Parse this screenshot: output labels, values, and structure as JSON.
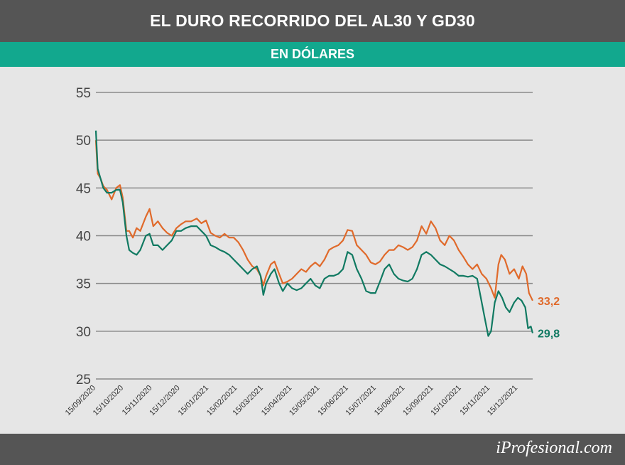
{
  "header": {
    "title": "EL DURO RECORRIDO DEL AL30 Y GD30"
  },
  "subheader": {
    "title": "EN DÓLARES"
  },
  "footer": {
    "brand_prefix": "i",
    "brand_rest": "Profesional.com"
  },
  "colors": {
    "al30": "#e06a2b",
    "gd30": "#117a62",
    "header_bg": "#555555",
    "band": "#12a88e",
    "grid": "#8a8a8a"
  },
  "chart_data": {
    "type": "line",
    "ylim": [
      25,
      55
    ],
    "yticks": [
      55,
      50,
      45,
      40,
      35,
      30,
      25
    ],
    "x_range": [
      "2020-09-15",
      "2021-12-31"
    ],
    "xticks": [
      "15/09/2020",
      "15/10/2020",
      "15/11/2020",
      "15/12/2020",
      "15/01/2021",
      "15/02/2021",
      "15/03/2021",
      "15/04/2021",
      "15/05/2021",
      "15/06/2021",
      "15/07/2021",
      "15/08/2021",
      "15/09/2021",
      "15/10/2021",
      "15/11/2021",
      "15/12/2021"
    ],
    "series": [
      {
        "key": "al30",
        "end_label": "33,2",
        "points": [
          [
            "2020-09-15",
            50.0
          ],
          [
            "2020-09-17",
            46.5
          ],
          [
            "2020-09-20",
            46.0
          ],
          [
            "2020-09-23",
            45.2
          ],
          [
            "2020-09-27",
            44.8
          ],
          [
            "2020-10-02",
            43.8
          ],
          [
            "2020-10-07",
            45.0
          ],
          [
            "2020-10-11",
            45.3
          ],
          [
            "2020-10-14",
            44.0
          ],
          [
            "2020-10-18",
            40.5
          ],
          [
            "2020-10-21",
            40.5
          ],
          [
            "2020-10-25",
            39.8
          ],
          [
            "2020-10-29",
            40.8
          ],
          [
            "2020-11-02",
            40.5
          ],
          [
            "2020-11-08",
            42.0
          ],
          [
            "2020-11-12",
            42.8
          ],
          [
            "2020-11-16",
            41.0
          ],
          [
            "2020-11-21",
            41.5
          ],
          [
            "2020-11-26",
            40.8
          ],
          [
            "2020-12-01",
            40.3
          ],
          [
            "2020-12-06",
            40.0
          ],
          [
            "2020-12-11",
            40.8
          ],
          [
            "2020-12-16",
            41.2
          ],
          [
            "2020-12-21",
            41.5
          ],
          [
            "2020-12-27",
            41.5
          ],
          [
            "2021-01-02",
            41.8
          ],
          [
            "2021-01-07",
            41.3
          ],
          [
            "2021-01-12",
            41.6
          ],
          [
            "2021-01-17",
            40.3
          ],
          [
            "2021-01-22",
            40.0
          ],
          [
            "2021-01-27",
            39.8
          ],
          [
            "2021-02-01",
            40.2
          ],
          [
            "2021-02-06",
            39.8
          ],
          [
            "2021-02-11",
            39.8
          ],
          [
            "2021-02-16",
            39.3
          ],
          [
            "2021-02-21",
            38.5
          ],
          [
            "2021-02-26",
            37.5
          ],
          [
            "2021-03-03",
            36.8
          ],
          [
            "2021-03-08",
            36.5
          ],
          [
            "2021-03-12",
            35.8
          ],
          [
            "2021-03-15",
            34.8
          ],
          [
            "2021-03-18",
            35.8
          ],
          [
            "2021-03-23",
            37.0
          ],
          [
            "2021-03-27",
            37.3
          ],
          [
            "2021-04-01",
            36.0
          ],
          [
            "2021-04-05",
            35.0
          ],
          [
            "2021-04-10",
            35.2
          ],
          [
            "2021-04-15",
            35.5
          ],
          [
            "2021-04-20",
            36.0
          ],
          [
            "2021-04-25",
            36.5
          ],
          [
            "2021-04-30",
            36.2
          ],
          [
            "2021-05-05",
            36.8
          ],
          [
            "2021-05-10",
            37.2
          ],
          [
            "2021-05-15",
            36.8
          ],
          [
            "2021-05-20",
            37.5
          ],
          [
            "2021-05-25",
            38.5
          ],
          [
            "2021-05-30",
            38.8
          ],
          [
            "2021-06-04",
            39.0
          ],
          [
            "2021-06-09",
            39.5
          ],
          [
            "2021-06-14",
            40.6
          ],
          [
            "2021-06-19",
            40.5
          ],
          [
            "2021-06-24",
            39.0
          ],
          [
            "2021-06-29",
            38.5
          ],
          [
            "2021-07-04",
            38.0
          ],
          [
            "2021-07-09",
            37.2
          ],
          [
            "2021-07-14",
            37.0
          ],
          [
            "2021-07-19",
            37.3
          ],
          [
            "2021-07-24",
            38.0
          ],
          [
            "2021-07-29",
            38.5
          ],
          [
            "2021-08-03",
            38.5
          ],
          [
            "2021-08-08",
            39.0
          ],
          [
            "2021-08-13",
            38.8
          ],
          [
            "2021-08-18",
            38.5
          ],
          [
            "2021-08-23",
            38.8
          ],
          [
            "2021-08-28",
            39.5
          ],
          [
            "2021-09-02",
            41.0
          ],
          [
            "2021-09-07",
            40.2
          ],
          [
            "2021-09-12",
            41.5
          ],
          [
            "2021-09-17",
            40.8
          ],
          [
            "2021-09-22",
            39.5
          ],
          [
            "2021-09-27",
            39.0
          ],
          [
            "2021-10-02",
            40.0
          ],
          [
            "2021-10-07",
            39.5
          ],
          [
            "2021-10-12",
            38.5
          ],
          [
            "2021-10-17",
            37.8
          ],
          [
            "2021-10-22",
            37.0
          ],
          [
            "2021-10-27",
            36.5
          ],
          [
            "2021-11-01",
            37.0
          ],
          [
            "2021-11-06",
            36.0
          ],
          [
            "2021-11-11",
            35.5
          ],
          [
            "2021-11-16",
            34.5
          ],
          [
            "2021-11-20",
            33.5
          ],
          [
            "2021-11-24",
            37.0
          ],
          [
            "2021-11-27",
            38.0
          ],
          [
            "2021-12-01",
            37.5
          ],
          [
            "2021-12-06",
            36.0
          ],
          [
            "2021-12-11",
            36.5
          ],
          [
            "2021-12-16",
            35.5
          ],
          [
            "2021-12-20",
            36.8
          ],
          [
            "2021-12-24",
            36.0
          ],
          [
            "2021-12-27",
            34.0
          ],
          [
            "2021-12-31",
            33.2
          ]
        ]
      },
      {
        "key": "gd30",
        "end_label": "29,8",
        "points": [
          [
            "2020-09-15",
            51.0
          ],
          [
            "2020-09-17",
            47.0
          ],
          [
            "2020-09-20",
            46.0
          ],
          [
            "2020-09-23",
            45.0
          ],
          [
            "2020-09-27",
            44.5
          ],
          [
            "2020-10-02",
            44.5
          ],
          [
            "2020-10-07",
            44.8
          ],
          [
            "2020-10-11",
            44.8
          ],
          [
            "2020-10-14",
            43.5
          ],
          [
            "2020-10-18",
            40.0
          ],
          [
            "2020-10-21",
            38.5
          ],
          [
            "2020-10-25",
            38.2
          ],
          [
            "2020-10-29",
            38.0
          ],
          [
            "2020-11-02",
            38.5
          ],
          [
            "2020-11-08",
            40.0
          ],
          [
            "2020-11-12",
            40.2
          ],
          [
            "2020-11-16",
            39.0
          ],
          [
            "2020-11-21",
            39.0
          ],
          [
            "2020-11-26",
            38.5
          ],
          [
            "2020-12-01",
            39.0
          ],
          [
            "2020-12-06",
            39.5
          ],
          [
            "2020-12-11",
            40.5
          ],
          [
            "2020-12-16",
            40.5
          ],
          [
            "2020-12-21",
            40.8
          ],
          [
            "2020-12-27",
            41.0
          ],
          [
            "2021-01-02",
            41.0
          ],
          [
            "2021-01-07",
            40.5
          ],
          [
            "2021-01-12",
            40.0
          ],
          [
            "2021-01-17",
            39.0
          ],
          [
            "2021-01-22",
            38.8
          ],
          [
            "2021-01-27",
            38.5
          ],
          [
            "2021-02-01",
            38.3
          ],
          [
            "2021-02-06",
            38.0
          ],
          [
            "2021-02-11",
            37.5
          ],
          [
            "2021-02-16",
            37.0
          ],
          [
            "2021-02-21",
            36.5
          ],
          [
            "2021-02-26",
            36.0
          ],
          [
            "2021-03-03",
            36.5
          ],
          [
            "2021-03-08",
            36.8
          ],
          [
            "2021-03-12",
            35.8
          ],
          [
            "2021-03-15",
            33.8
          ],
          [
            "2021-03-18",
            35.0
          ],
          [
            "2021-03-23",
            36.0
          ],
          [
            "2021-03-27",
            36.5
          ],
          [
            "2021-04-01",
            35.0
          ],
          [
            "2021-04-05",
            34.2
          ],
          [
            "2021-04-10",
            35.0
          ],
          [
            "2021-04-15",
            34.5
          ],
          [
            "2021-04-20",
            34.3
          ],
          [
            "2021-04-25",
            34.5
          ],
          [
            "2021-04-30",
            35.0
          ],
          [
            "2021-05-05",
            35.5
          ],
          [
            "2021-05-10",
            34.8
          ],
          [
            "2021-05-15",
            34.5
          ],
          [
            "2021-05-20",
            35.5
          ],
          [
            "2021-05-25",
            35.8
          ],
          [
            "2021-05-30",
            35.8
          ],
          [
            "2021-06-04",
            36.0
          ],
          [
            "2021-06-09",
            36.5
          ],
          [
            "2021-06-14",
            38.3
          ],
          [
            "2021-06-19",
            38.0
          ],
          [
            "2021-06-24",
            36.5
          ],
          [
            "2021-06-29",
            35.5
          ],
          [
            "2021-07-04",
            34.2
          ],
          [
            "2021-07-09",
            34.0
          ],
          [
            "2021-07-14",
            34.0
          ],
          [
            "2021-07-19",
            35.2
          ],
          [
            "2021-07-24",
            36.5
          ],
          [
            "2021-07-29",
            37.0
          ],
          [
            "2021-08-03",
            36.0
          ],
          [
            "2021-08-08",
            35.5
          ],
          [
            "2021-08-13",
            35.3
          ],
          [
            "2021-08-18",
            35.2
          ],
          [
            "2021-08-23",
            35.5
          ],
          [
            "2021-08-28",
            36.5
          ],
          [
            "2021-09-02",
            38.0
          ],
          [
            "2021-09-07",
            38.3
          ],
          [
            "2021-09-12",
            38.0
          ],
          [
            "2021-09-17",
            37.5
          ],
          [
            "2021-09-22",
            37.0
          ],
          [
            "2021-09-27",
            36.8
          ],
          [
            "2021-10-02",
            36.5
          ],
          [
            "2021-10-07",
            36.2
          ],
          [
            "2021-10-12",
            35.8
          ],
          [
            "2021-10-17",
            35.8
          ],
          [
            "2021-10-22",
            35.7
          ],
          [
            "2021-10-27",
            35.8
          ],
          [
            "2021-11-01",
            35.5
          ],
          [
            "2021-11-06",
            33.0
          ],
          [
            "2021-11-09",
            31.5
          ],
          [
            "2021-11-13",
            29.5
          ],
          [
            "2021-11-16",
            30.0
          ],
          [
            "2021-11-20",
            33.0
          ],
          [
            "2021-11-24",
            34.2
          ],
          [
            "2021-11-28",
            33.5
          ],
          [
            "2021-12-02",
            32.5
          ],
          [
            "2021-12-06",
            32.0
          ],
          [
            "2021-12-11",
            33.0
          ],
          [
            "2021-12-15",
            33.5
          ],
          [
            "2021-12-19",
            33.2
          ],
          [
            "2021-12-23",
            32.5
          ],
          [
            "2021-12-26",
            30.3
          ],
          [
            "2021-12-29",
            30.5
          ],
          [
            "2021-12-31",
            29.8
          ]
        ]
      }
    ]
  }
}
